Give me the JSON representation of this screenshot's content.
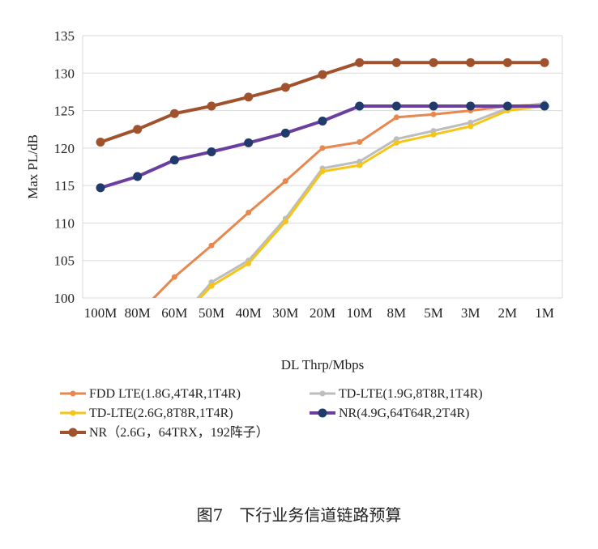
{
  "caption": "图7　下行业务信道链路预算",
  "chart_data": {
    "type": "line",
    "xlabel": "DL Thrp/Mbps",
    "ylabel": "Max PL/dB",
    "ylim": [
      100,
      135
    ],
    "yticks": [
      100,
      105,
      110,
      115,
      120,
      125,
      130,
      135
    ],
    "categories": [
      "100M",
      "80M",
      "60M",
      "50M",
      "40M",
      "30M",
      "20M",
      "10M",
      "8M",
      "5M",
      "3M",
      "2M",
      "1M"
    ],
    "grid": "horizontal",
    "legend_position": "bottom",
    "series": [
      {
        "name": "FDD LTE(1.8G,4T4R,1T4R)",
        "color": "#E8874E",
        "marker": "small",
        "x": [
          2.3,
          3,
          4,
          5,
          6,
          7,
          8,
          9,
          10,
          11,
          12,
          13
        ],
        "values": [
          99.3,
          102.8,
          107.0,
          111.4,
          115.6,
          120.0,
          120.8,
          124.1,
          124.5,
          125.0,
          125.6,
          125.8
        ]
      },
      {
        "name": "TD-LTE(1.9G,8T8R,1T4R)",
        "color": "#BDBDBD",
        "marker": "small",
        "x": [
          3.4,
          4,
          5,
          6,
          7,
          8,
          9,
          10,
          11,
          12,
          13
        ],
        "values": [
          98.7,
          102.1,
          105.0,
          110.6,
          117.3,
          118.2,
          121.2,
          122.3,
          123.4,
          125.3,
          126.0
        ]
      },
      {
        "name": "TD-LTE(2.6G,8T8R,1T4R)",
        "color": "#F5C518",
        "marker": "small",
        "x": [
          3.4,
          4,
          5,
          6,
          7,
          8,
          9,
          10,
          11,
          12,
          13
        ],
        "values": [
          98.5,
          101.6,
          104.6,
          110.2,
          116.9,
          117.7,
          120.7,
          121.8,
          122.9,
          125.0,
          125.6
        ]
      },
      {
        "name": "NR(4.9G,64T64R,2T4R)",
        "color": "#6A3FA0",
        "marker": "large",
        "marker_color": "#1F3A6B",
        "x": [
          1,
          2,
          3,
          4,
          5,
          6,
          7,
          8,
          9,
          10,
          11,
          12,
          13
        ],
        "values": [
          114.7,
          116.2,
          118.4,
          119.5,
          120.7,
          122.0,
          123.6,
          125.6,
          125.6,
          125.6,
          125.6,
          125.6,
          125.6
        ]
      },
      {
        "name": "NR（2.6G，64TRX，192阵子）",
        "color": "#A0522D",
        "marker": "large",
        "x": [
          1,
          2,
          3,
          4,
          5,
          6,
          7,
          8,
          9,
          10,
          11,
          12,
          13
        ],
        "values": [
          120.8,
          122.5,
          124.6,
          125.6,
          126.8,
          128.1,
          129.8,
          131.4,
          131.4,
          131.4,
          131.4,
          131.4,
          131.4
        ]
      }
    ]
  }
}
